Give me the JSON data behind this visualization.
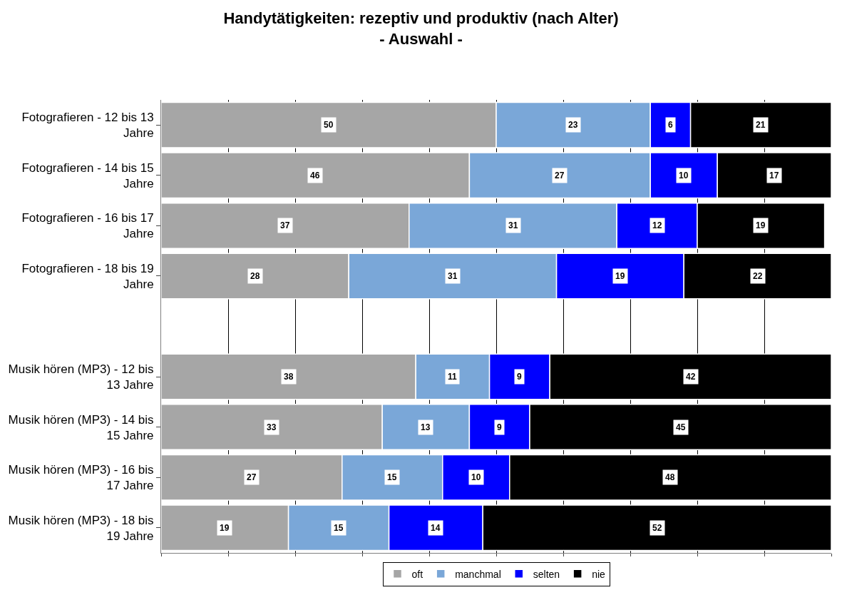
{
  "chart_data": {
    "type": "bar",
    "orientation": "horizontal",
    "stacked": true,
    "title": "Handytätigkeiten: rezeptiv und produktiv (nach Alter)",
    "subtitle": "- Auswahl -",
    "categories": [
      "Fotografieren - 12 bis 13 Jahre",
      "Fotografieren - 14 bis 15 Jahre",
      "Fotografieren - 16 bis 17 Jahre",
      "Fotografieren - 18 bis 19 Jahre",
      null,
      "Musik hören (MP3) - 12 bis 13 Jahre",
      "Musik hören (MP3) - 14 bis 15 Jahre",
      "Musik hören (MP3) - 16 bis 17 Jahre",
      "Musik hören (MP3) - 18 bis 19 Jahre"
    ],
    "series": [
      {
        "name": "oft",
        "color": "#a6a6a6",
        "values": [
          50,
          46,
          37,
          28,
          null,
          38,
          33,
          27,
          19
        ]
      },
      {
        "name": "manchmal",
        "color": "#7aa7d8",
        "values": [
          23,
          27,
          31,
          31,
          null,
          11,
          13,
          15,
          15
        ]
      },
      {
        "name": "selten",
        "color": "#0000ff",
        "values": [
          6,
          10,
          12,
          19,
          null,
          9,
          9,
          10,
          14
        ]
      },
      {
        "name": "nie",
        "color": "#000000",
        "values": [
          21,
          17,
          19,
          22,
          null,
          42,
          45,
          48,
          52
        ]
      }
    ],
    "xlim": [
      0,
      100
    ],
    "xticks": [
      {
        "value": 0,
        "label": null
      },
      {
        "value": 10,
        "label": null
      },
      {
        "value": 20,
        "label": null
      },
      {
        "value": 30,
        "label": null
      },
      {
        "value": 40,
        "label": null
      },
      {
        "value": 50,
        "label": null
      },
      {
        "value": 60,
        "label": null
      },
      {
        "value": 70,
        "label": null
      },
      {
        "value": 80,
        "label": null
      },
      {
        "value": 90,
        "label": null
      },
      {
        "value": 100,
        "label": null
      }
    ],
    "tick_labels": "y",
    "grid": "x",
    "legend": "bottom",
    "data_labels": true
  }
}
